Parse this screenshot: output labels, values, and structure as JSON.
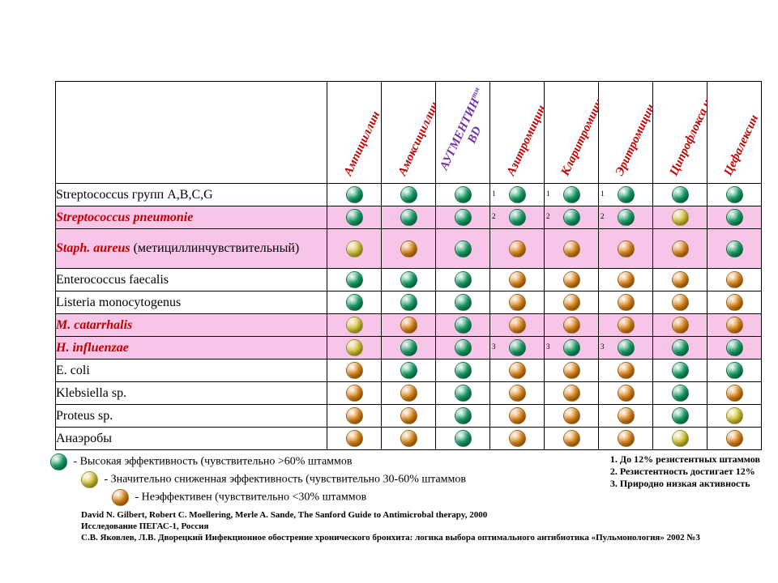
{
  "colors": {
    "green": "#1aa36b",
    "yellow": "#d6c93a",
    "orange": "#e08a1e",
    "pink_row": "#f7c5e7",
    "header_red": "#c00000",
    "header_purple": "#7030a0"
  },
  "columns": [
    {
      "label": "Ампициллин",
      "style": "red"
    },
    {
      "label": "Амоксициллин",
      "style": "red"
    },
    {
      "label": "АУГМЕНТИН",
      "suffix": "тм",
      "sub": "BD",
      "style": "purple"
    },
    {
      "label": "Азитромицин",
      "style": "red"
    },
    {
      "label": "Кларитромицин",
      "style": "red"
    },
    {
      "label": "Эритромицин",
      "style": "red"
    },
    {
      "label": "Ципрофлокса цин",
      "style": "red"
    },
    {
      "label": "Цефалексин",
      "style": "red"
    }
  ],
  "rows": [
    {
      "label": "Streptococcus групп A,B,C,G",
      "styled": false,
      "pink": false,
      "cells": [
        {
          "c": "green"
        },
        {
          "c": "green"
        },
        {
          "c": "green"
        },
        {
          "c": "green",
          "n": "1"
        },
        {
          "c": "green",
          "n": "1"
        },
        {
          "c": "green",
          "n": "1"
        },
        {
          "c": "green"
        },
        {
          "c": "green"
        }
      ]
    },
    {
      "label": "Streptococcus pneumonie",
      "styled": true,
      "pink": true,
      "cells": [
        {
          "c": "green"
        },
        {
          "c": "green"
        },
        {
          "c": "green"
        },
        {
          "c": "green",
          "n": "2"
        },
        {
          "c": "green",
          "n": "2"
        },
        {
          "c": "green",
          "n": "2"
        },
        {
          "c": "yellow"
        },
        {
          "c": "green"
        }
      ]
    },
    {
      "label": "Staph. aureus",
      "sub": " (метициллинчувствительный)",
      "styled": true,
      "pink": true,
      "tall": true,
      "cells": [
        {
          "c": "yellow"
        },
        {
          "c": "orange"
        },
        {
          "c": "green"
        },
        {
          "c": "orange"
        },
        {
          "c": "orange"
        },
        {
          "c": "orange"
        },
        {
          "c": "orange"
        },
        {
          "c": "green"
        }
      ]
    },
    {
      "label": "Enterococcus faecalis",
      "styled": false,
      "pink": false,
      "cells": [
        {
          "c": "green"
        },
        {
          "c": "green"
        },
        {
          "c": "green"
        },
        {
          "c": "orange"
        },
        {
          "c": "orange"
        },
        {
          "c": "orange"
        },
        {
          "c": "orange"
        },
        {
          "c": "orange"
        }
      ]
    },
    {
      "label": "Listeria monocytogenus",
      "styled": false,
      "pink": false,
      "cells": [
        {
          "c": "green"
        },
        {
          "c": "green"
        },
        {
          "c": "green"
        },
        {
          "c": "orange"
        },
        {
          "c": "orange"
        },
        {
          "c": "orange"
        },
        {
          "c": "orange"
        },
        {
          "c": "orange"
        }
      ]
    },
    {
      "label": "M. catarrhalis",
      "styled": true,
      "pink": true,
      "cells": [
        {
          "c": "yellow"
        },
        {
          "c": "orange"
        },
        {
          "c": "green"
        },
        {
          "c": "orange"
        },
        {
          "c": "orange"
        },
        {
          "c": "orange"
        },
        {
          "c": "orange"
        },
        {
          "c": "orange"
        }
      ]
    },
    {
      "label": "H. influenzae",
      "styled": true,
      "pink": true,
      "cells": [
        {
          "c": "yellow"
        },
        {
          "c": "green"
        },
        {
          "c": "green"
        },
        {
          "c": "green",
          "n": "3"
        },
        {
          "c": "green",
          "n": "3"
        },
        {
          "c": "green",
          "n": "3"
        },
        {
          "c": "green"
        },
        {
          "c": "green"
        }
      ]
    },
    {
      "label": "E. coli",
      "styled": false,
      "pink": false,
      "cells": [
        {
          "c": "orange"
        },
        {
          "c": "green"
        },
        {
          "c": "green"
        },
        {
          "c": "orange"
        },
        {
          "c": "orange"
        },
        {
          "c": "orange"
        },
        {
          "c": "green"
        },
        {
          "c": "green"
        }
      ]
    },
    {
      "label": "Klebsiella sp.",
      "styled": false,
      "pink": false,
      "cells": [
        {
          "c": "orange"
        },
        {
          "c": "orange"
        },
        {
          "c": "green"
        },
        {
          "c": "orange"
        },
        {
          "c": "orange"
        },
        {
          "c": "orange"
        },
        {
          "c": "green"
        },
        {
          "c": "orange"
        }
      ]
    },
    {
      "label": "Proteus sp.",
      "styled": false,
      "pink": false,
      "cells": [
        {
          "c": "orange"
        },
        {
          "c": "orange"
        },
        {
          "c": "green"
        },
        {
          "c": "orange"
        },
        {
          "c": "orange"
        },
        {
          "c": "orange"
        },
        {
          "c": "green"
        },
        {
          "c": "yellow"
        }
      ]
    },
    {
      "label": "Анаэробы",
      "styled": false,
      "pink": false,
      "cells": [
        {
          "c": "orange"
        },
        {
          "c": "orange"
        },
        {
          "c": "green"
        },
        {
          "c": "orange"
        },
        {
          "c": "orange"
        },
        {
          "c": "orange"
        },
        {
          "c": "yellow"
        },
        {
          "c": "orange"
        }
      ]
    }
  ],
  "legend": [
    {
      "c": "green",
      "text": "- Высокая эффективность (чувствительно >60% штаммов"
    },
    {
      "c": "yellow",
      "text": "- Значительно сниженная эффективность (чувствительно 30-60% штаммов"
    },
    {
      "c": "orange",
      "text": "- Неэффективен (чувствительно <30% штаммов"
    }
  ],
  "footnotes": [
    "1. До 12% резистентных штаммов",
    "2. Резистентность достигает 12%",
    "3. Природно низкая активность"
  ],
  "credits": [
    "David N. Gilbert, Robert C. Moellering, Merle A. Sande, The Sanford Guide to Antimicrobal therapy, 2000",
    "Исследование ПЕГАС-1, Россия",
    "С.В. Яковлев, Л.В. Дворецкий Инфекционное обострение хронического бронхита: логика выбора оптимального антибиотика «Пульмонология» 2002 №3"
  ]
}
